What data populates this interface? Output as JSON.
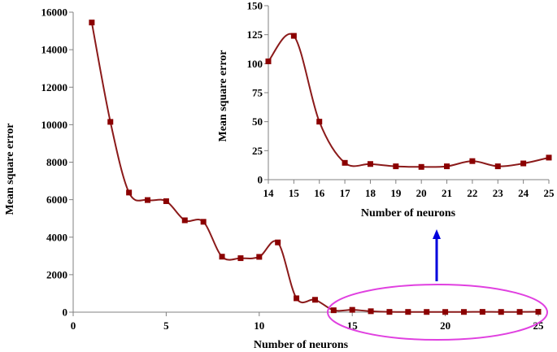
{
  "colors": {
    "series": "#8B1A1A",
    "marker": "#8B0000",
    "ellipse": "#E040E0",
    "arrow": "#0000DD",
    "axis": "#808080"
  },
  "chart_data": [
    {
      "type": "line",
      "xlabel": "Number of neurons",
      "ylabel": "Mean square error",
      "xlim": [
        0,
        25
      ],
      "ylim": [
        0,
        16000
      ],
      "xticks": [
        0,
        5,
        10,
        15,
        20,
        25
      ],
      "yticks": [
        0,
        2000,
        4000,
        6000,
        8000,
        10000,
        12000,
        14000,
        16000
      ],
      "grid": false,
      "marker": "square",
      "smooth": true,
      "x": [
        1,
        2,
        3,
        4,
        5,
        6,
        7,
        8,
        9,
        10,
        11,
        12,
        13,
        14,
        15,
        16,
        17,
        18,
        19,
        20,
        21,
        22,
        23,
        24,
        25
      ],
      "y": [
        15450,
        10150,
        6380,
        5980,
        5920,
        4900,
        4820,
        2960,
        2880,
        2950,
        3720,
        740,
        660,
        102,
        124,
        50,
        14.5,
        13.5,
        11.5,
        11,
        11.5,
        16,
        11.5,
        14,
        19
      ],
      "annotation": "ellipse highlighting neurons 14 to 25 with arrow pointing to zoomed inset"
    },
    {
      "type": "line",
      "xlabel": "Number of neurons",
      "ylabel": "Mean square error",
      "xlim": [
        14,
        25
      ],
      "ylim": [
        0,
        150
      ],
      "xticks": [
        14,
        15,
        16,
        17,
        18,
        19,
        20,
        21,
        22,
        23,
        24,
        25
      ],
      "yticks": [
        0,
        25,
        50,
        75,
        100,
        125,
        150
      ],
      "grid": false,
      "marker": "square",
      "smooth": true,
      "x": [
        14,
        15,
        16,
        17,
        18,
        19,
        20,
        21,
        22,
        23,
        24,
        25
      ],
      "y": [
        102,
        124,
        50,
        14.5,
        13.5,
        11.5,
        11,
        11.5,
        16,
        11.5,
        14,
        19
      ]
    }
  ]
}
